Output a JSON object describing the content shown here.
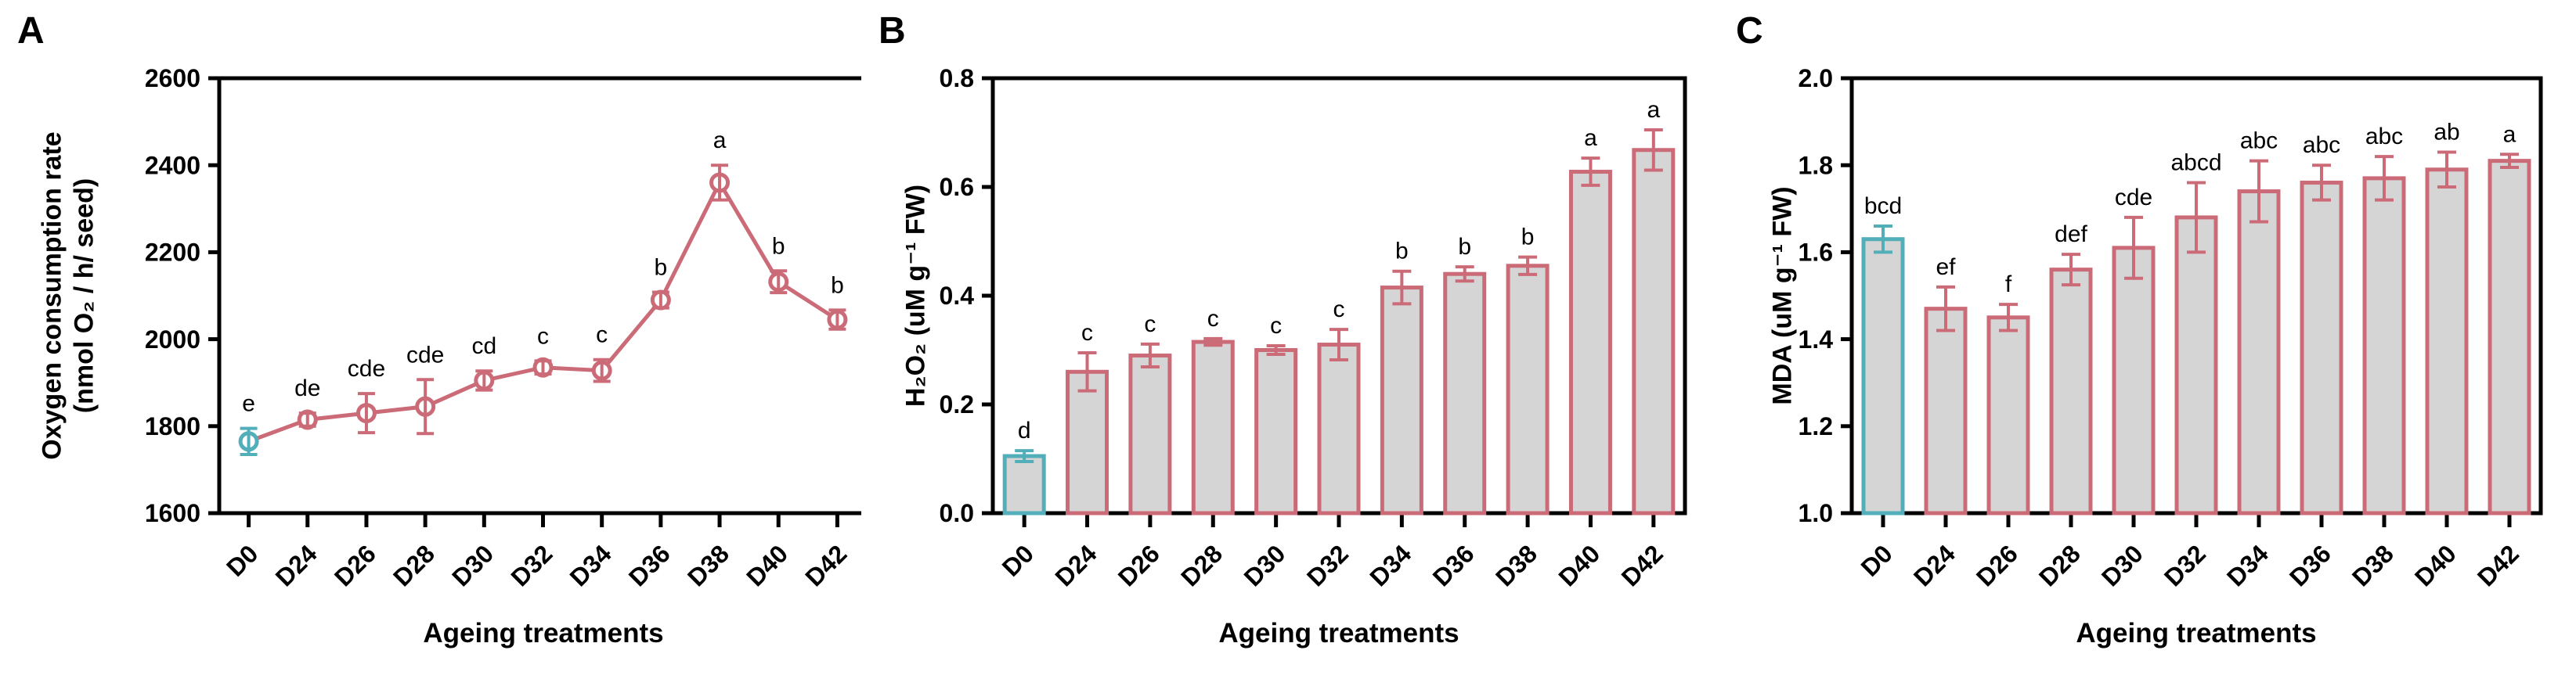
{
  "figure": {
    "background": "#FFFFFF",
    "xlabel": "Ageing treatments",
    "categories": [
      "D0",
      "D24",
      "D26",
      "D28",
      "D30",
      "D32",
      "D34",
      "D36",
      "D38",
      "D40",
      "D42"
    ],
    "panels": [
      {
        "letter": "A",
        "ylabel_lines": [
          "Oxygen consumption rate",
          "(nmol O₂ / h/ seed)"
        ],
        "xlabel": "Ageing treatments"
      },
      {
        "letter": "B",
        "ylabel_lines": [
          "H₂O₂ (uM g⁻¹ FW)"
        ],
        "xlabel": "Ageing treatments"
      },
      {
        "letter": "C",
        "ylabel_lines": [
          "MDA (uM g⁻¹ FW)"
        ],
        "xlabel": "Ageing treatments"
      }
    ]
  },
  "colors": {
    "series_rose": "#CC6B78",
    "accent_teal": "#52AEB9",
    "bar_fill": "#D5D5D5",
    "axis": "#000000",
    "background": "#FFFFFF"
  },
  "chart_data": [
    {
      "type": "line",
      "panel": "A",
      "title": "Oxygen consumption rate",
      "ylabel": "Oxygen consumption rate (nmol O₂ / h/ seed)",
      "xlabel": "Ageing treatments",
      "categories": [
        "D0",
        "D24",
        "D26",
        "D28",
        "D30",
        "D32",
        "D34",
        "D36",
        "D38",
        "D40",
        "D42"
      ],
      "values": [
        1765,
        1815,
        1830,
        1845,
        1905,
        1935,
        1928,
        2090,
        2360,
        2132,
        2045
      ],
      "errors": [
        30,
        15,
        45,
        62,
        22,
        15,
        25,
        18,
        40,
        25,
        22
      ],
      "sig_letters": [
        "e",
        "de",
        "cde",
        "cde",
        "cd",
        "c",
        "c",
        "b",
        "a",
        "b",
        "b"
      ],
      "ylim": [
        1600,
        2600
      ],
      "yticks": [
        1600,
        1800,
        2000,
        2200,
        2400,
        2600
      ],
      "ytick_labels": [
        "1600",
        "1800",
        "2000",
        "2200",
        "2400",
        "2600"
      ],
      "grid": false,
      "legend": "none",
      "marker": "open-circle",
      "first_point_color": "#52AEB9",
      "series_color": "#CC6B78"
    },
    {
      "type": "bar",
      "panel": "B",
      "title": "H₂O₂",
      "ylabel": "H₂O₂ (uM g⁻¹ FW)",
      "xlabel": "Ageing treatments",
      "categories": [
        "D0",
        "D24",
        "D26",
        "D28",
        "D30",
        "D32",
        "D34",
        "D36",
        "D38",
        "D40",
        "D42"
      ],
      "values": [
        0.105,
        0.26,
        0.29,
        0.315,
        0.3,
        0.31,
        0.415,
        0.44,
        0.455,
        0.628,
        0.668
      ],
      "errors": [
        0.01,
        0.035,
        0.021,
        0.006,
        0.008,
        0.028,
        0.03,
        0.013,
        0.016,
        0.025,
        0.037
      ],
      "sig_letters": [
        "d",
        "c",
        "c",
        "c",
        "c",
        "c",
        "b",
        "b",
        "b",
        "a",
        "a"
      ],
      "ylim": [
        0.0,
        0.8
      ],
      "yticks": [
        0.0,
        0.2,
        0.4,
        0.6,
        0.8
      ],
      "ytick_labels": [
        "0.0",
        "0.2",
        "0.4",
        "0.6",
        "0.8"
      ],
      "grid": false,
      "legend": "none",
      "bar_fill": "#D5D5D5",
      "first_bar_color": "#52AEB9",
      "series_color": "#CC6B78"
    },
    {
      "type": "bar",
      "panel": "C",
      "title": "MDA",
      "ylabel": "MDA (uM g⁻¹ FW)",
      "xlabel": "Ageing treatments",
      "categories": [
        "D0",
        "D24",
        "D26",
        "D28",
        "D30",
        "D32",
        "D34",
        "D36",
        "D38",
        "D40",
        "D42"
      ],
      "values": [
        1.63,
        1.47,
        1.45,
        1.56,
        1.61,
        1.68,
        1.74,
        1.76,
        1.77,
        1.79,
        1.81
      ],
      "errors": [
        0.03,
        0.05,
        0.03,
        0.035,
        0.07,
        0.08,
        0.07,
        0.04,
        0.05,
        0.04,
        0.015
      ],
      "sig_letters": [
        "bcd",
        "ef",
        "f",
        "def",
        "cde",
        "abcd",
        "abc",
        "abc",
        "abc",
        "ab",
        "a"
      ],
      "ylim": [
        1.0,
        2.0
      ],
      "yticks": [
        1.0,
        1.2,
        1.4,
        1.6,
        1.8,
        2.0
      ],
      "ytick_labels": [
        "1.0",
        "1.2",
        "1.4",
        "1.6",
        "1.8",
        "2.0"
      ],
      "grid": false,
      "legend": "none",
      "bar_fill": "#D5D5D5",
      "first_bar_color": "#52AEB9",
      "series_color": "#CC6B78"
    }
  ]
}
